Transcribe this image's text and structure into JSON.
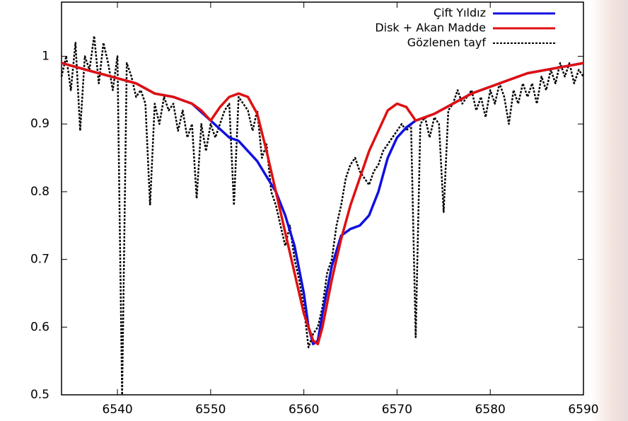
{
  "chart_data": {
    "type": "line",
    "xlim": [
      6534,
      6590
    ],
    "ylim": [
      0.5,
      1.08
    ],
    "xticks": [
      6540,
      6550,
      6560,
      6570,
      6580,
      6590
    ],
    "yticks": [
      0.5,
      0.6,
      0.7,
      0.8,
      0.9,
      1
    ],
    "grid": false,
    "legend": "top-right",
    "series": [
      {
        "name": "Çift Yıldız",
        "color": "#1010e0",
        "dash": "solid",
        "x": [
          6534,
          6538,
          6542,
          6544,
          6546,
          6548,
          6550,
          6552,
          6553,
          6555,
          6557,
          6558,
          6559,
          6560,
          6560.5,
          6561,
          6561.5,
          6562,
          6563,
          6564,
          6565,
          6566,
          6567,
          6568,
          6569,
          6570,
          6571,
          6572,
          6574,
          6576,
          6578,
          6580,
          6582,
          6584,
          6586,
          6588,
          6590
        ],
        "values": [
          0.99,
          0.975,
          0.96,
          0.945,
          0.94,
          0.93,
          0.905,
          0.88,
          0.875,
          0.845,
          0.8,
          0.765,
          0.72,
          0.65,
          0.6,
          0.575,
          0.58,
          0.62,
          0.69,
          0.735,
          0.745,
          0.75,
          0.765,
          0.8,
          0.85,
          0.88,
          0.895,
          0.905,
          0.915,
          0.93,
          0.945,
          0.955,
          0.965,
          0.975,
          0.98,
          0.985,
          0.99
        ]
      },
      {
        "name": "Disk + Akan Madde",
        "color": "#e01010",
        "dash": "solid",
        "x": [
          6534,
          6538,
          6542,
          6544,
          6546,
          6548,
          6549,
          6550,
          6551,
          6552,
          6553,
          6554,
          6555,
          6556,
          6557,
          6558,
          6559,
          6560,
          6561,
          6561.5,
          6562,
          6563,
          6564,
          6565,
          6566,
          6567,
          6568,
          6569,
          6570,
          6571,
          6572,
          6573,
          6574,
          6576,
          6578,
          6580,
          6582,
          6584,
          6586,
          6588,
          6590
        ],
        "values": [
          0.99,
          0.975,
          0.96,
          0.945,
          0.94,
          0.93,
          0.92,
          0.905,
          0.925,
          0.94,
          0.945,
          0.94,
          0.915,
          0.86,
          0.8,
          0.74,
          0.68,
          0.62,
          0.58,
          0.575,
          0.6,
          0.67,
          0.73,
          0.78,
          0.82,
          0.86,
          0.89,
          0.92,
          0.93,
          0.925,
          0.905,
          0.91,
          0.915,
          0.93,
          0.945,
          0.955,
          0.965,
          0.975,
          0.98,
          0.985,
          0.99
        ]
      },
      {
        "name": "Gözlenen tayf",
        "color": "#000000",
        "dash": "dotted",
        "x": [
          6534,
          6534.5,
          6535,
          6535.5,
          6536,
          6536.5,
          6537,
          6537.5,
          6538,
          6538.5,
          6539,
          6539.5,
          6540,
          6540.5,
          6541,
          6541.5,
          6542,
          6542.5,
          6543,
          6543.5,
          6544,
          6544.5,
          6545,
          6545.5,
          6546,
          6546.5,
          6547,
          6547.5,
          6548,
          6548.5,
          6549,
          6549.5,
          6550,
          6550.5,
          6551,
          6551.5,
          6552,
          6552.5,
          6553,
          6553.5,
          6554,
          6554.5,
          6555,
          6555.5,
          6556,
          6556.5,
          6557,
          6557.5,
          6558,
          6558.5,
          6559,
          6559.5,
          6560,
          6560.5,
          6561,
          6561.5,
          6562,
          6562.5,
          6563,
          6563.5,
          6564,
          6564.5,
          6565,
          6565.5,
          6566,
          6566.5,
          6567,
          6567.5,
          6568,
          6568.5,
          6569,
          6569.5,
          6570,
          6570.5,
          6571,
          6571.5,
          6572,
          6572.5,
          6573,
          6573.5,
          6574,
          6574.5,
          6575,
          6575.5,
          6576,
          6576.5,
          6577,
          6577.5,
          6578,
          6578.5,
          6579,
          6579.5,
          6580,
          6580.5,
          6581,
          6581.5,
          6582,
          6582.5,
          6583,
          6583.5,
          6584,
          6584.5,
          6585,
          6585.5,
          6586,
          6586.5,
          6587,
          6587.5,
          6588,
          6588.5,
          6589,
          6589.5,
          6590
        ],
        "values": [
          0.97,
          1.0,
          0.95,
          1.02,
          0.89,
          1.0,
          0.98,
          1.03,
          0.96,
          1.02,
          0.99,
          0.95,
          1.0,
          0.5,
          0.99,
          0.97,
          0.94,
          0.95,
          0.93,
          0.78,
          0.93,
          0.9,
          0.94,
          0.92,
          0.93,
          0.89,
          0.92,
          0.88,
          0.9,
          0.79,
          0.9,
          0.86,
          0.9,
          0.88,
          0.9,
          0.92,
          0.93,
          0.78,
          0.94,
          0.93,
          0.92,
          0.89,
          0.92,
          0.85,
          0.87,
          0.8,
          0.78,
          0.75,
          0.72,
          0.75,
          0.7,
          0.67,
          0.63,
          0.57,
          0.59,
          0.6,
          0.63,
          0.68,
          0.7,
          0.75,
          0.78,
          0.82,
          0.84,
          0.85,
          0.83,
          0.82,
          0.81,
          0.83,
          0.84,
          0.86,
          0.87,
          0.88,
          0.89,
          0.9,
          0.89,
          0.9,
          0.585,
          0.9,
          0.91,
          0.88,
          0.91,
          0.9,
          0.77,
          0.92,
          0.93,
          0.95,
          0.93,
          0.94,
          0.95,
          0.92,
          0.94,
          0.91,
          0.95,
          0.93,
          0.96,
          0.94,
          0.9,
          0.95,
          0.93,
          0.96,
          0.94,
          0.96,
          0.93,
          0.97,
          0.95,
          0.98,
          0.96,
          0.99,
          0.97,
          0.99,
          0.96,
          0.98,
          0.97
        ]
      }
    ]
  }
}
